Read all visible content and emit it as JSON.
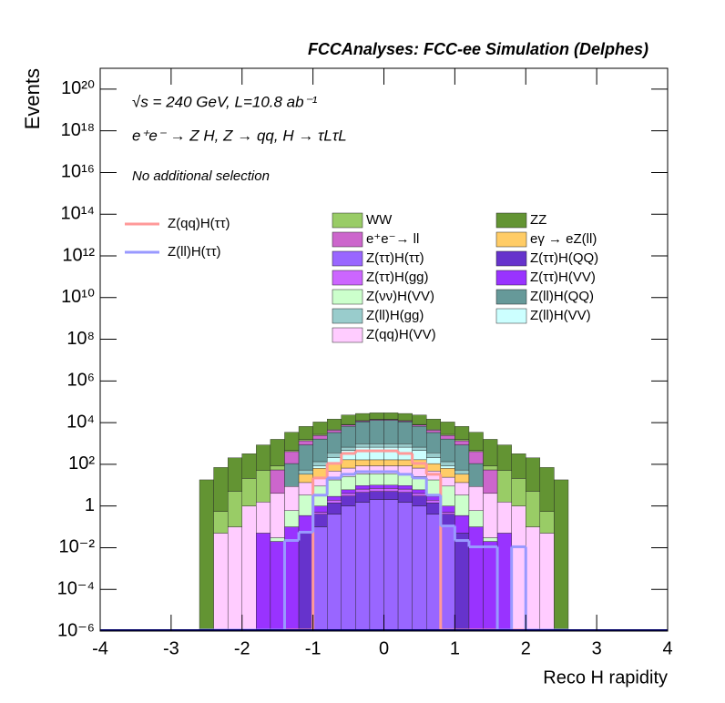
{
  "chart_data": {
    "type": "stacked_histogram",
    "title": "FCCAnalyses: FCC-ee Simulation (Delphes)",
    "annotations": [
      "√s = 240 GeV, L=10.8 ab⁻¹",
      "e⁺e⁻ → Z H, Z → qq, H → τLτL",
      "No additional selection"
    ],
    "x_label": "Reco H rapidity",
    "y_label": "Events",
    "log_y": true,
    "xlim": [
      -4,
      4
    ],
    "ylim": [
      1e-06,
      1e+21
    ],
    "xticks": [
      -4,
      -3,
      -2,
      -1,
      0,
      1,
      2,
      3,
      4
    ],
    "yticks": [
      {
        "value": 1e-06,
        "label": "10⁻⁶"
      },
      {
        "value": 0.0001,
        "label": "10⁻⁴"
      },
      {
        "value": 0.01,
        "label": "10⁻²"
      },
      1,
      {
        "value": 100,
        "label": "10²"
      },
      {
        "value": 10000.0,
        "label": "10⁴"
      },
      {
        "value": 1000000.0,
        "label": "10⁶"
      },
      {
        "value": 100000000.0,
        "label": "10⁸"
      },
      {
        "value": 10000000000.0,
        "label": "10¹⁰"
      },
      {
        "value": 1000000000000.0,
        "label": "10¹²"
      },
      {
        "value": 100000000000000.0,
        "label": "10¹⁴"
      },
      {
        "value": 1e+16,
        "label": "10¹⁶"
      },
      {
        "value": 1e+18,
        "label": "10¹⁸"
      },
      {
        "value": 1e+20,
        "label": "10²⁰"
      }
    ],
    "bins": [
      -2.6,
      -2.4,
      -2.2,
      -2,
      -1.8,
      -1.6,
      -1.4,
      -1.2,
      -1,
      -0.8,
      -0.6,
      -0.4,
      -0.2,
      0,
      0.2,
      0.4,
      0.6,
      0.8,
      1,
      1.2,
      1.4,
      1.6,
      1.8,
      2,
      2.2,
      2.4,
      2.6
    ],
    "series": [
      {
        "name": "WW",
        "color": "#99cc66",
        "values": [
          0,
          0.5,
          5,
          20,
          50,
          30,
          50,
          200,
          300,
          500,
          500,
          500,
          500,
          500,
          500,
          500,
          500,
          300,
          200,
          50,
          30,
          50,
          20,
          5,
          0.5,
          0
        ]
      },
      {
        "name": "ZZ",
        "color": "#639433",
        "values": [
          18,
          70,
          200,
          300,
          800,
          1500,
          3000,
          5000,
          8000,
          10000,
          15000,
          15000,
          15000,
          15000,
          15000,
          15000,
          10000,
          8000,
          5000,
          3000,
          1500,
          800,
          300,
          200,
          70,
          18
        ]
      },
      {
        "name": "e⁺e⁻→ ll",
        "color": "#cc66cc",
        "values": [
          0,
          0,
          0,
          0,
          0,
          50,
          300,
          500,
          800,
          1000,
          1000,
          1000,
          1000,
          1000,
          1000,
          1000,
          1000,
          800,
          500,
          300,
          50,
          0,
          0,
          0,
          0,
          0
        ]
      },
      {
        "name": "eγ → eZ(ll)",
        "color": "#ffcc66",
        "values": [
          0,
          0,
          0,
          0,
          0,
          0,
          0.01,
          20,
          40,
          60,
          100,
          80,
          80,
          80,
          80,
          100,
          60,
          40,
          20,
          0.01,
          0,
          0,
          0,
          0,
          0,
          0
        ]
      },
      {
        "name": "Z(ττ)H(ττ)",
        "color": "#9966ff",
        "values": [
          0,
          0,
          0,
          0,
          0,
          0,
          0,
          0,
          0.1,
          0.4,
          1,
          1.5,
          2,
          2,
          1.5,
          1,
          0.4,
          0.1,
          0,
          0,
          0,
          0,
          0,
          0,
          0,
          0
        ]
      },
      {
        "name": "Z(ττ)H(QQ)",
        "color": "#6633cc",
        "values": [
          0,
          0,
          0,
          0,
          0,
          0,
          0,
          0.05,
          0.3,
          1,
          2,
          3,
          3,
          3,
          3,
          2,
          1,
          0.3,
          0.05,
          0,
          0,
          0,
          0,
          0,
          0,
          0
        ]
      },
      {
        "name": "Z(ττ)H(gg)",
        "color": "#cc66ff",
        "values": [
          0,
          0,
          0,
          0,
          0,
          0,
          0,
          0,
          0.1,
          0.5,
          1,
          2,
          2,
          2,
          2,
          1,
          0.5,
          0.1,
          0,
          0,
          0,
          0,
          0,
          0,
          0,
          0
        ]
      },
      {
        "name": "Z(ττ)H(VV)",
        "color": "#9933ff",
        "values": [
          0,
          0,
          0,
          0,
          0.05,
          0.02,
          0.1,
          0.3,
          0.5,
          1,
          2,
          3,
          3,
          3,
          3,
          2,
          1,
          0.5,
          0.3,
          0.1,
          0.02,
          0.05,
          0,
          0,
          0,
          0
        ]
      },
      {
        "name": "Z(νν)H(VV)",
        "color": "#ccffcc",
        "values": [
          0,
          0,
          0,
          0,
          0,
          0.01,
          0.5,
          3,
          8,
          15,
          20,
          25,
          25,
          25,
          25,
          20,
          15,
          8,
          3,
          0.5,
          0.01,
          0,
          0,
          0,
          0,
          0
        ]
      },
      {
        "name": "Z(ll)H(QQ)",
        "color": "#669999",
        "values": [
          0,
          0,
          0,
          0,
          0,
          0,
          100,
          800,
          1500,
          3000,
          6000,
          10000,
          12000,
          12000,
          10000,
          6000,
          3000,
          1500,
          800,
          100,
          0,
          0,
          0,
          0,
          0,
          0
        ]
      },
      {
        "name": "Z(ll)H(gg)",
        "color": "#99cccc",
        "values": [
          0,
          0,
          0,
          0,
          0,
          0,
          0,
          20,
          50,
          150,
          200,
          300,
          300,
          300,
          300,
          200,
          150,
          50,
          20,
          0,
          0,
          0,
          0,
          0,
          0,
          0
        ]
      },
      {
        "name": "Z(ll)H(VV)",
        "color": "#ccffff",
        "values": [
          0,
          0,
          0,
          0,
          0,
          0,
          0,
          0,
          20,
          100,
          300,
          500,
          500,
          500,
          500,
          300,
          100,
          20,
          0,
          0,
          0,
          0,
          0,
          0,
          0,
          0
        ]
      },
      {
        "name": "Z(qq)H(VV)",
        "color": "#ffccff",
        "values": [
          0,
          0.05,
          0.1,
          1,
          1.5,
          4,
          8,
          10,
          15,
          30,
          40,
          50,
          50,
          50,
          50,
          40,
          30,
          15,
          10,
          8,
          4,
          1.5,
          1,
          0.1,
          0.05,
          0
        ]
      }
    ],
    "line_series": [
      {
        "name": "Z(qq)H(ττ)",
        "color": "#ff9999",
        "values": [
          0,
          0,
          0,
          0,
          0,
          0,
          0,
          0,
          20,
          100,
          300,
          400,
          400,
          400,
          300,
          100,
          30,
          0,
          0,
          0,
          0,
          0,
          0,
          0,
          0,
          0
        ]
      },
      {
        "name": "Z(ll)H(ττ)",
        "color": "#9999ff",
        "values": [
          0,
          0,
          0,
          0,
          0,
          0,
          0.02,
          0.05,
          3,
          20,
          30,
          40,
          40,
          40,
          30,
          20,
          3,
          0.1,
          0.02,
          0.01,
          0.01,
          0,
          0.01,
          0,
          0,
          0
        ]
      }
    ]
  }
}
